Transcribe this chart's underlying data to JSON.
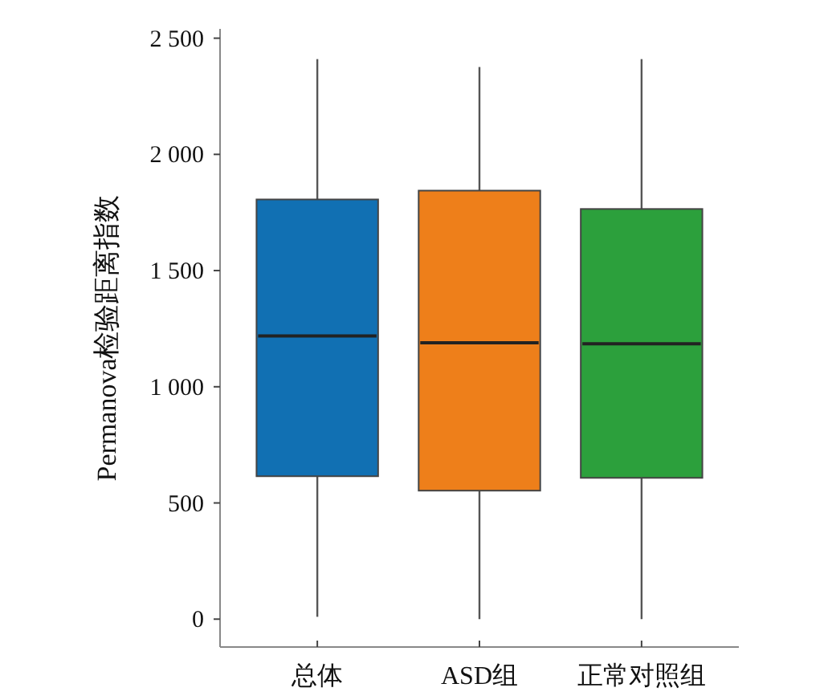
{
  "chart_data": {
    "type": "box",
    "ylabel": "Permanova检验距离指数",
    "categories": [
      "总体",
      "ASD组",
      "正常对照组"
    ],
    "colors": [
      "#1170b3",
      "#ee7f1a",
      "#2ca03c"
    ],
    "boxes": [
      {
        "low": 10,
        "q1": 615,
        "median": 1219,
        "q3": 1806,
        "high": 2410
      },
      {
        "low": 0,
        "q1": 553,
        "median": 1189,
        "q3": 1844,
        "high": 2376
      },
      {
        "low": 0,
        "q1": 608,
        "median": 1185,
        "q3": 1765,
        "high": 2410
      }
    ],
    "ylim": [
      -120,
      2540
    ],
    "yticks": [
      0,
      500,
      {
        "value": 1000,
        "label": "1 000"
      },
      {
        "value": 1500,
        "label": "1 500"
      },
      {
        "value": 2000,
        "label": "2 000"
      },
      {
        "value": 2500,
        "label": "2 500"
      }
    ],
    "grid": false
  }
}
